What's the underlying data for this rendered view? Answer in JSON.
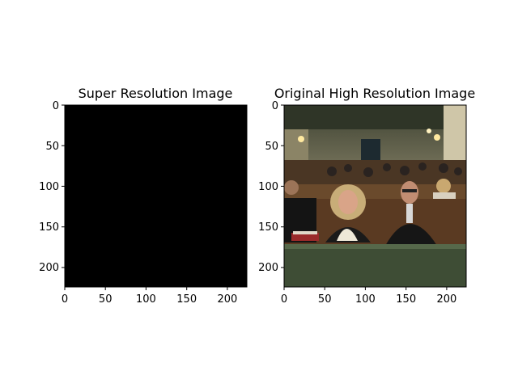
{
  "panels": [
    {
      "title": "Super Resolution Image",
      "image": "black-image",
      "x_ticks": [
        "0",
        "50",
        "100",
        "150",
        "200"
      ],
      "y_ticks": [
        "0",
        "50",
        "100",
        "150",
        "200"
      ]
    },
    {
      "title": "Original High Resolution Image",
      "image": "photo-church-pews-people",
      "x_ticks": [
        "0",
        "50",
        "100",
        "150",
        "200"
      ],
      "y_ticks": [
        "0",
        "50",
        "100",
        "150",
        "200"
      ]
    }
  ],
  "colors": {
    "sr_image": "#000000",
    "wall": "#5c5c4a",
    "pew": "#5a3a22",
    "pew_front": "#3e4d35"
  }
}
